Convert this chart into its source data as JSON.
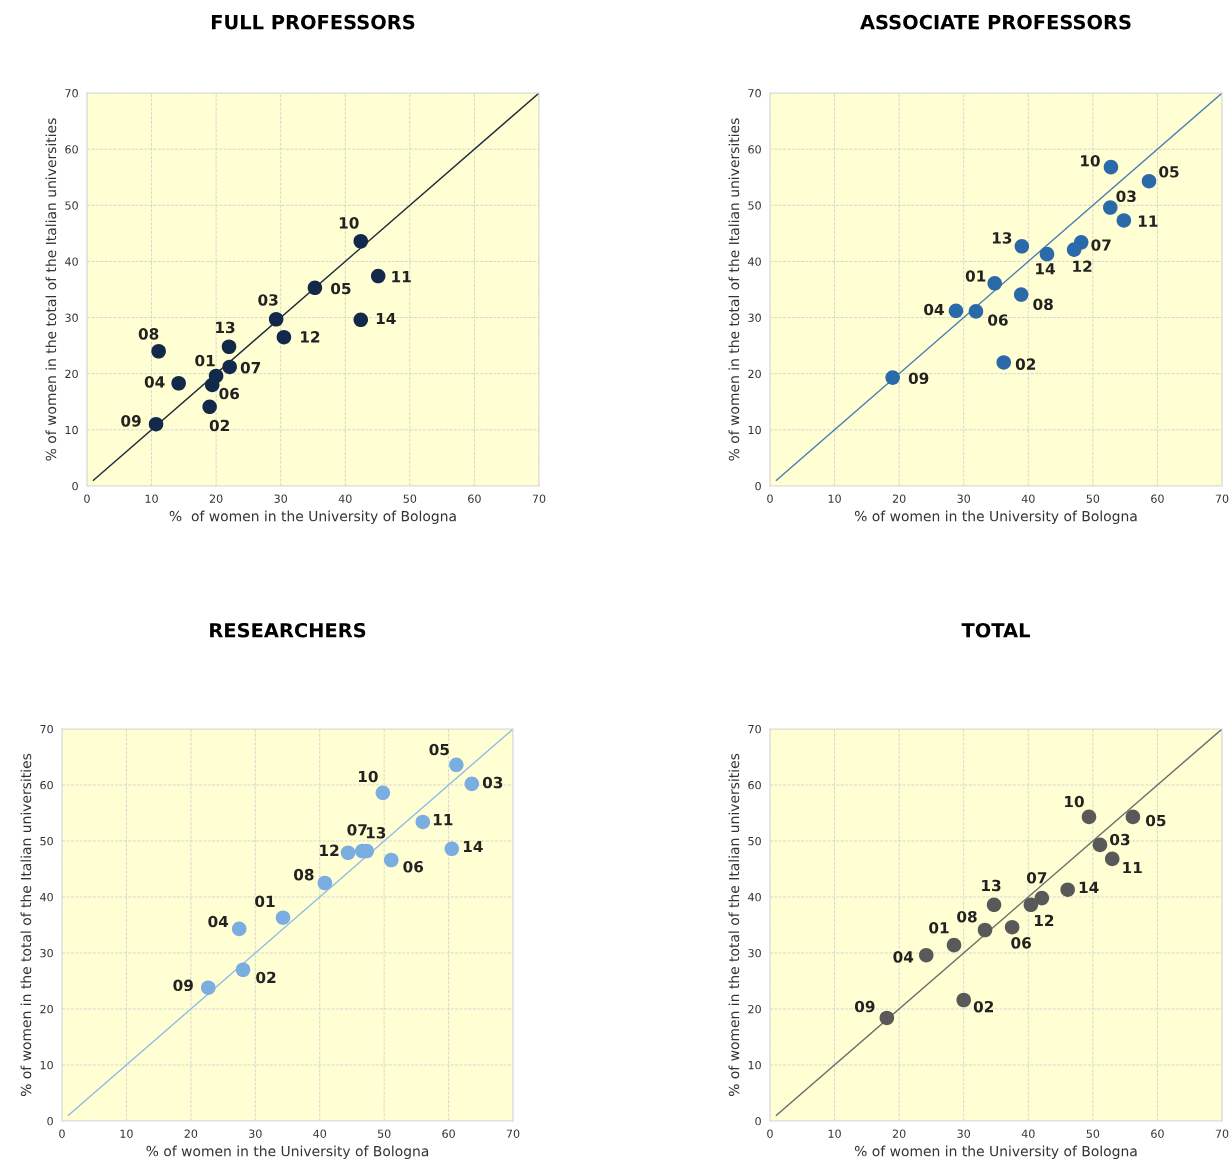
{
  "chart_data": [
    {
      "type": "scatter",
      "title": "FULL PROFESSORS",
      "xlabel": "%  of women in the University of Bologna",
      "ylabel": "% of women in the total of the Italian universities",
      "xlim": [
        0,
        70
      ],
      "ylim": [
        0,
        70
      ],
      "xticks": [
        0,
        10,
        20,
        30,
        40,
        50,
        60,
        70
      ],
      "yticks": [
        0,
        10,
        20,
        30,
        40,
        50,
        60,
        70
      ],
      "grid": true,
      "legend": false,
      "series": [
        {
          "marker": "circle",
          "color": "#13294b",
          "x": [
            20.0,
            19.0,
            29.3,
            14.2,
            35.3,
            19.4,
            22.1,
            11.1,
            10.7,
            42.4,
            45.1,
            30.5,
            22.0,
            42.4
          ],
          "values": [
            19.6,
            14.1,
            29.7,
            18.3,
            35.3,
            18.0,
            21.2,
            24.0,
            11.0,
            43.6,
            37.4,
            26.5,
            24.8,
            29.6
          ]
        },
        {
          "type": "line",
          "color": "#1f2d3d",
          "x": [
            1,
            70
          ],
          "values": [
            1,
            70
          ]
        }
      ],
      "annotations": [
        {
          "text": "01",
          "x": 20.0,
          "y": 19.6
        },
        {
          "text": "02",
          "x": 19.0,
          "y": 14.1
        },
        {
          "text": "03",
          "x": 29.3,
          "y": 29.7
        },
        {
          "text": "04",
          "x": 14.2,
          "y": 18.3
        },
        {
          "text": "05",
          "x": 35.3,
          "y": 35.3
        },
        {
          "text": "06",
          "x": 19.4,
          "y": 18.0
        },
        {
          "text": "07",
          "x": 22.1,
          "y": 21.2
        },
        {
          "text": "08",
          "x": 11.1,
          "y": 24.0
        },
        {
          "text": "09",
          "x": 10.7,
          "y": 11.0
        },
        {
          "text": "10",
          "x": 42.4,
          "y": 43.6
        },
        {
          "text": "11",
          "x": 45.1,
          "y": 37.4
        },
        {
          "text": "12",
          "x": 30.5,
          "y": 26.5
        },
        {
          "text": "13",
          "x": 22.0,
          "y": 24.8
        },
        {
          "text": "14",
          "x": 42.4,
          "y": 29.6
        }
      ]
    },
    {
      "type": "scatter",
      "title": "ASSOCIATE PROFESSORS",
      "xlabel": "% of women in the University of Bologna",
      "ylabel": "% of women in the total of the Italian universities",
      "xlim": [
        0,
        70
      ],
      "ylim": [
        0,
        70
      ],
      "xticks": [
        0,
        10,
        20,
        30,
        40,
        50,
        60,
        70
      ],
      "yticks": [
        0,
        10,
        20,
        30,
        40,
        50,
        60,
        70
      ],
      "grid": true,
      "legend": false,
      "series": [
        {
          "marker": "circle",
          "color": "#2b6aa8",
          "x": [
            34.8,
            36.2,
            52.7,
            28.8,
            58.7,
            31.9,
            48.2,
            38.9,
            19.0,
            52.8,
            54.8,
            47.1,
            39.0,
            42.9
          ],
          "values": [
            36.1,
            22.0,
            49.6,
            31.2,
            54.3,
            31.1,
            43.4,
            34.1,
            19.3,
            56.8,
            47.3,
            42.1,
            42.7,
            41.3
          ]
        },
        {
          "type": "line",
          "color": "#4a7fb5",
          "x": [
            1,
            70
          ],
          "values": [
            1,
            70
          ]
        }
      ],
      "annotations": [
        {
          "text": "01",
          "x": 34.8,
          "y": 36.1
        },
        {
          "text": "02",
          "x": 36.2,
          "y": 22.0
        },
        {
          "text": "03",
          "x": 52.7,
          "y": 49.6
        },
        {
          "text": "04",
          "x": 28.8,
          "y": 31.2
        },
        {
          "text": "05",
          "x": 58.7,
          "y": 54.3
        },
        {
          "text": "06",
          "x": 31.9,
          "y": 31.1
        },
        {
          "text": "07",
          "x": 48.2,
          "y": 43.4
        },
        {
          "text": "08",
          "x": 38.9,
          "y": 34.1
        },
        {
          "text": "09",
          "x": 19.0,
          "y": 19.3
        },
        {
          "text": "10",
          "x": 52.8,
          "y": 56.8
        },
        {
          "text": "11",
          "x": 54.8,
          "y": 47.3
        },
        {
          "text": "12",
          "x": 47.1,
          "y": 42.1
        },
        {
          "text": "13",
          "x": 39.0,
          "y": 42.7
        },
        {
          "text": "14",
          "x": 42.9,
          "y": 41.3
        }
      ]
    },
    {
      "type": "scatter",
      "title": "RESEARCHERS",
      "xlabel": "% of women in the University of Bologna",
      "ylabel": "% of women in the total of the Italian universities",
      "xlim": [
        0,
        70
      ],
      "ylim": [
        0,
        70
      ],
      "xticks": [
        0,
        10,
        20,
        30,
        40,
        50,
        60,
        70
      ],
      "yticks": [
        0,
        10,
        20,
        30,
        40,
        50,
        60,
        70
      ],
      "grid": true,
      "legend": false,
      "series": [
        {
          "marker": "circle",
          "color": "#7aade0",
          "x": [
            34.3,
            28.1,
            63.6,
            27.5,
            61.2,
            51.1,
            46.6,
            40.8,
            22.7,
            49.8,
            56.0,
            44.4,
            47.3,
            60.5
          ],
          "values": [
            36.3,
            27.0,
            60.2,
            34.3,
            63.6,
            46.6,
            48.2,
            42.5,
            23.8,
            58.6,
            53.4,
            47.9,
            48.2,
            48.6
          ]
        },
        {
          "type": "line",
          "color": "#8fbbe6",
          "x": [
            1,
            70
          ],
          "values": [
            1,
            70
          ]
        }
      ],
      "annotations": [
        {
          "text": "01",
          "x": 34.3,
          "y": 36.3
        },
        {
          "text": "02",
          "x": 28.1,
          "y": 27.0
        },
        {
          "text": "03",
          "x": 63.6,
          "y": 60.2
        },
        {
          "text": "04",
          "x": 27.5,
          "y": 34.3
        },
        {
          "text": "05",
          "x": 61.2,
          "y": 63.6
        },
        {
          "text": "06",
          "x": 51.1,
          "y": 46.6
        },
        {
          "text": "07",
          "x": 46.6,
          "y": 48.2
        },
        {
          "text": "08",
          "x": 40.8,
          "y": 42.5
        },
        {
          "text": "09",
          "x": 22.7,
          "y": 23.8
        },
        {
          "text": "10",
          "x": 49.8,
          "y": 58.6
        },
        {
          "text": "11",
          "x": 56.0,
          "y": 53.4
        },
        {
          "text": "12",
          "x": 44.4,
          "y": 47.9
        },
        {
          "text": "13",
          "x": 47.3,
          "y": 48.2
        },
        {
          "text": "14",
          "x": 60.5,
          "y": 48.6
        }
      ]
    },
    {
      "type": "scatter",
      "title": "TOTAL",
      "xlabel": "% of women in the University of Bologna",
      "ylabel": "% of women in the total of the Italian universities",
      "xlim": [
        0,
        70
      ],
      "ylim": [
        0,
        70
      ],
      "xticks": [
        0,
        10,
        20,
        30,
        40,
        50,
        60,
        70
      ],
      "yticks": [
        0,
        10,
        20,
        30,
        40,
        50,
        60,
        70
      ],
      "grid": true,
      "legend": false,
      "series": [
        {
          "marker": "circle",
          "color": "#595959",
          "x": [
            28.5,
            30.0,
            51.1,
            24.2,
            56.2,
            37.5,
            42.1,
            33.3,
            18.1,
            49.4,
            53.0,
            40.4,
            34.7,
            46.1
          ],
          "values": [
            31.4,
            21.6,
            49.3,
            29.6,
            54.3,
            34.6,
            39.8,
            34.1,
            18.4,
            54.3,
            46.8,
            38.6,
            38.6,
            41.3
          ]
        },
        {
          "type": "line",
          "color": "#6b6b6b",
          "x": [
            1,
            70
          ],
          "values": [
            1,
            70
          ]
        }
      ],
      "annotations": [
        {
          "text": "01",
          "x": 28.5,
          "y": 31.4
        },
        {
          "text": "02",
          "x": 30.0,
          "y": 21.6
        },
        {
          "text": "03",
          "x": 51.1,
          "y": 49.3
        },
        {
          "text": "04",
          "x": 24.2,
          "y": 29.6
        },
        {
          "text": "05",
          "x": 56.2,
          "y": 54.3
        },
        {
          "text": "06",
          "x": 37.5,
          "y": 34.6
        },
        {
          "text": "07",
          "x": 42.1,
          "y": 39.8
        },
        {
          "text": "08",
          "x": 33.3,
          "y": 34.1
        },
        {
          "text": "09",
          "x": 18.1,
          "y": 18.4
        },
        {
          "text": "10",
          "x": 49.4,
          "y": 54.3
        },
        {
          "text": "11",
          "x": 53.0,
          "y": 46.8
        },
        {
          "text": "12",
          "x": 40.4,
          "y": 38.6
        },
        {
          "text": "13",
          "x": 34.7,
          "y": 38.6
        },
        {
          "text": "14",
          "x": 46.1,
          "y": 41.3
        }
      ]
    }
  ]
}
